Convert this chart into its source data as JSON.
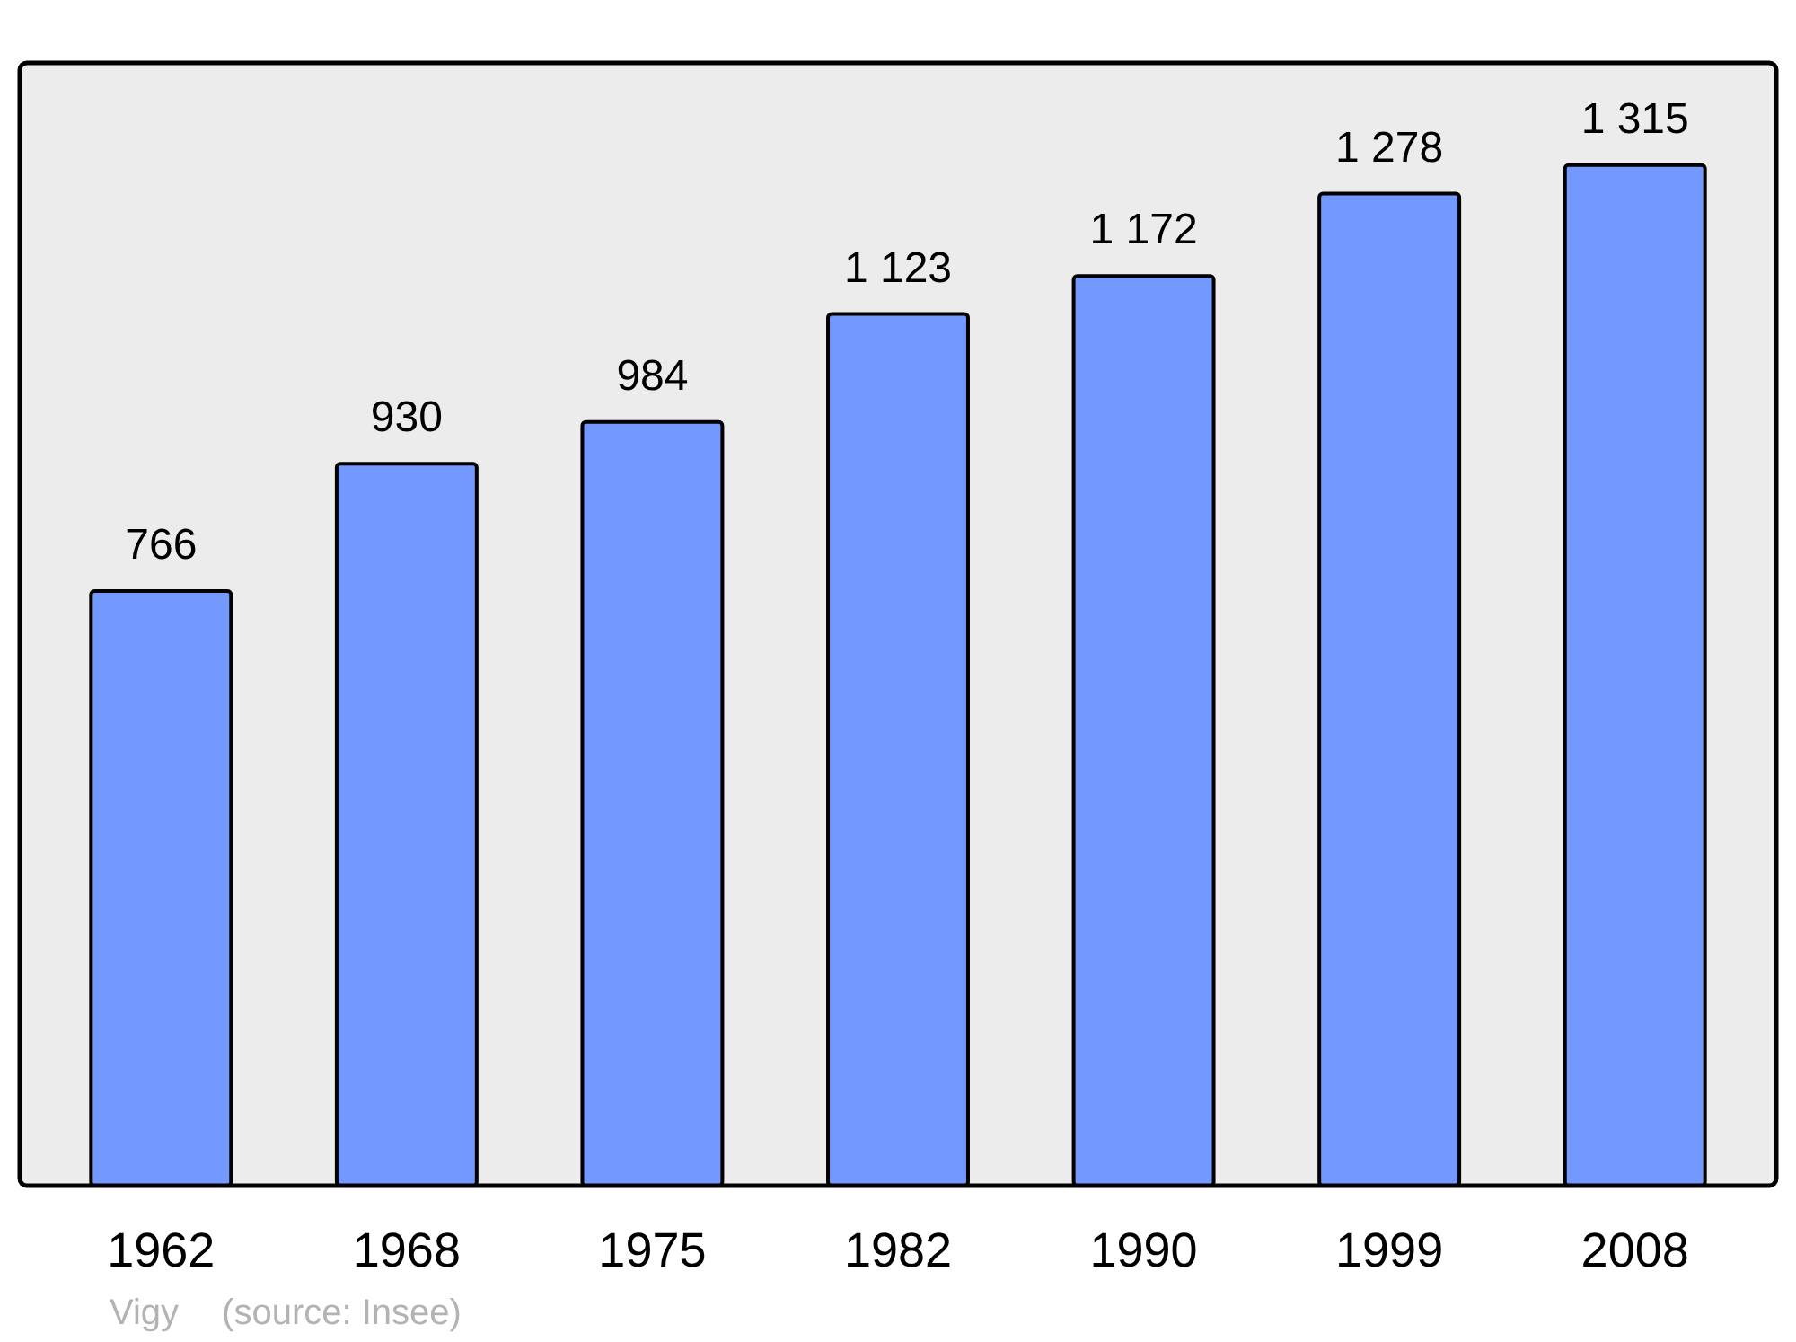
{
  "chart_data": {
    "type": "bar",
    "categories": [
      "1962",
      "1968",
      "1975",
      "1982",
      "1990",
      "1999",
      "2008"
    ],
    "values": [
      766,
      930,
      984,
      1123,
      1172,
      1278,
      1315
    ],
    "value_labels": [
      "766",
      "930",
      "984",
      "1 123",
      "1 172",
      "1 278",
      "1 315"
    ],
    "color": "#7399ff",
    "annotations": [
      "Vigy",
      "(source: Insee)"
    ]
  }
}
